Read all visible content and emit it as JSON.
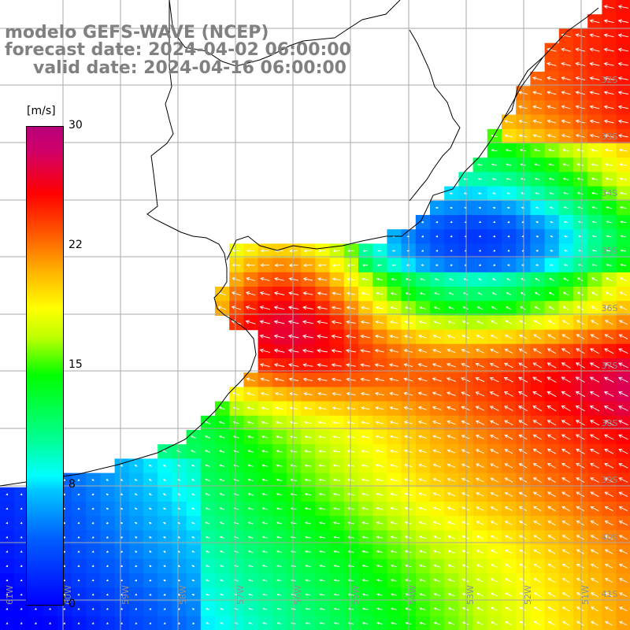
{
  "title": {
    "line1": "modelo GEFS-WAVE (NCEP)",
    "line2": "forecast date: 2024-04-02 06:00:00",
    "line3": "valid date: 2024-04-16 06:00:00"
  },
  "colorbar": {
    "units": "[m/s]",
    "max": "30",
    "tick_22": "22",
    "tick_15": "15",
    "tick_8": "8",
    "min": "0"
  },
  "lat_labels": [
    "32S",
    "33S",
    "34S",
    "35S",
    "36S",
    "37S",
    "38S",
    "39S",
    "40S",
    "41S"
  ],
  "lon_labels": [
    "61W",
    "60W",
    "59W",
    "58W",
    "57W",
    "56W",
    "55W",
    "54W",
    "53W",
    "52W",
    "51W"
  ],
  "colors": {
    "title_gray": "#808080",
    "grid": "#b4b4b4",
    "coast": "#000000",
    "arrow": "#ffffff"
  },
  "field": {
    "variable": "wind speed",
    "units": "m/s",
    "range": [
      0,
      30
    ]
  }
}
